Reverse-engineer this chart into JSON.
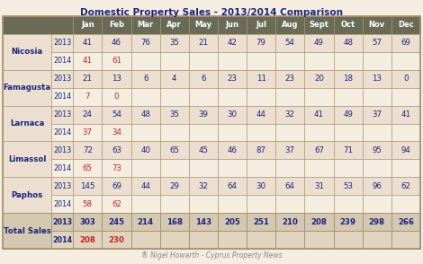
{
  "title": "Domestic Property Sales - 2013/2014 Comparison",
  "footer": "® Nigel Howarth - Cyprus Property News",
  "months": [
    "Jan",
    "Feb",
    "Mar",
    "Apr",
    "May",
    "Jun",
    "Jul",
    "Aug",
    "Sept",
    "Oct",
    "Nov",
    "Dec"
  ],
  "rows": [
    {
      "region": "Nicosia",
      "year2013": [
        41,
        46,
        76,
        35,
        21,
        42,
        79,
        54,
        49,
        48,
        57,
        69
      ],
      "year2014": [
        41,
        61,
        null,
        null,
        null,
        null,
        null,
        null,
        null,
        null,
        null,
        null
      ]
    },
    {
      "region": "Famagusta",
      "year2013": [
        21,
        13,
        6,
        4,
        6,
        23,
        11,
        23,
        20,
        18,
        13,
        0
      ],
      "year2014": [
        7,
        0,
        null,
        null,
        null,
        null,
        null,
        null,
        null,
        null,
        null,
        null
      ]
    },
    {
      "region": "Larnaca",
      "year2013": [
        24,
        54,
        48,
        35,
        39,
        30,
        44,
        32,
        41,
        49,
        37,
        41
      ],
      "year2014": [
        37,
        34,
        null,
        null,
        null,
        null,
        null,
        null,
        null,
        null,
        null,
        null
      ]
    },
    {
      "region": "Limassol",
      "year2013": [
        72,
        63,
        40,
        65,
        45,
        46,
        87,
        37,
        67,
        71,
        95,
        94
      ],
      "year2014": [
        65,
        73,
        null,
        null,
        null,
        null,
        null,
        null,
        null,
        null,
        null,
        null
      ]
    },
    {
      "region": "Paphos",
      "year2013": [
        145,
        69,
        44,
        29,
        32,
        64,
        30,
        64,
        31,
        53,
        96,
        62
      ],
      "year2014": [
        58,
        62,
        null,
        null,
        null,
        null,
        null,
        null,
        null,
        null,
        null,
        null
      ]
    }
  ],
  "totals": {
    "year2013": [
      303,
      245,
      214,
      168,
      143,
      205,
      251,
      210,
      208,
      239,
      298,
      266
    ],
    "year2014": [
      208,
      230,
      null,
      null,
      null,
      null,
      null,
      null,
      null,
      null,
      null,
      null
    ]
  },
  "bg_outer": "#f5ede0",
  "bg_header": "#6b6b55",
  "bg_row_odd": "#ecdfd0",
  "bg_row_even": "#f5ede0",
  "bg_total_2013": "#d4c8b0",
  "bg_total_2014": "#e0d4be",
  "header_text_color": "#ffffff",
  "dark_blue": "#1a237e",
  "red_2014": "#cc2222",
  "border_color": "#a09070",
  "title_color": "#1a237e",
  "footer_color": "#888888"
}
